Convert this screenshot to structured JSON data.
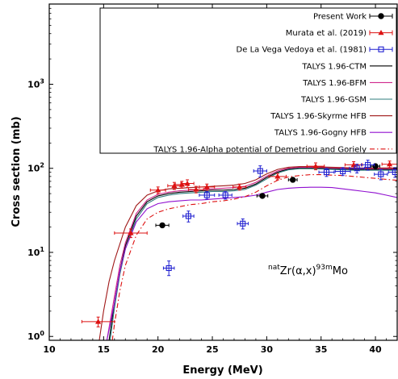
{
  "chart_data": {
    "type": "scatter",
    "xlabel": "Energy (MeV)",
    "ylabel": "Cross section (mb)",
    "xlim": [
      10,
      42
    ],
    "ylim": [
      0.9,
      9000
    ],
    "yscale": "log",
    "x_ticks": [
      10,
      15,
      20,
      25,
      30,
      35,
      40
    ],
    "y_ticks": [
      {
        "value": 1,
        "base": "10",
        "exp": "0"
      },
      {
        "value": 10,
        "base": "10",
        "exp": "1"
      },
      {
        "value": 100,
        "base": "10",
        "exp": "2"
      },
      {
        "value": 1000,
        "base": "10",
        "exp": "3"
      }
    ],
    "grid": false,
    "legend_placement": "top-right",
    "annotation": {
      "pre_sup": "nat",
      "main": "Zr(α,x)",
      "post_sup": "93m",
      "tail": "Mo"
    },
    "experimental": [
      {
        "name": "Present Work",
        "color": "#000000",
        "marker": "circle-filled",
        "points": [
          {
            "x": 20.4,
            "y": 21,
            "xerr": 0.6,
            "yerr_lo": 1.2,
            "yerr_hi": 1.2
          },
          {
            "x": 29.6,
            "y": 47,
            "xerr": 0.5,
            "yerr_lo": 2.5,
            "yerr_hi": 2.5
          },
          {
            "x": 32.4,
            "y": 73,
            "xerr": 0.4,
            "yerr_lo": 4,
            "yerr_hi": 4
          },
          {
            "x": 40.0,
            "y": 106,
            "xerr": 0.4,
            "yerr_lo": 5,
            "yerr_hi": 5
          }
        ]
      },
      {
        "name": "Murata et al. (2019)",
        "color": "#dd1111",
        "marker": "triangle-filled",
        "points": [
          {
            "x": 14.5,
            "y": 1.5,
            "xerr": 1.5,
            "yerr_lo": 0.2,
            "yerr_hi": 0.2
          },
          {
            "x": 17.5,
            "y": 17,
            "xerr": 1.5,
            "yerr_lo": 2,
            "yerr_hi": 2
          },
          {
            "x": 20.0,
            "y": 55,
            "xerr": 0.7,
            "yerr_lo": 5,
            "yerr_hi": 5
          },
          {
            "x": 21.5,
            "y": 62,
            "xerr": 0.6,
            "yerr_lo": 6,
            "yerr_hi": 6
          },
          {
            "x": 22.2,
            "y": 64,
            "xerr": 0.6,
            "yerr_lo": 6,
            "yerr_hi": 6
          },
          {
            "x": 22.7,
            "y": 66,
            "xerr": 0.6,
            "yerr_lo": 7,
            "yerr_hi": 7
          },
          {
            "x": 23.5,
            "y": 56,
            "xerr": 0.7,
            "yerr_lo": 5,
            "yerr_hi": 5
          },
          {
            "x": 24.5,
            "y": 60,
            "xerr": 0.7,
            "yerr_lo": 5,
            "yerr_hi": 5
          },
          {
            "x": 27.5,
            "y": 60,
            "xerr": 0.6,
            "yerr_lo": 5,
            "yerr_hi": 5
          },
          {
            "x": 31.0,
            "y": 80,
            "xerr": 0.8,
            "yerr_lo": 7,
            "yerr_hi": 7
          },
          {
            "x": 34.5,
            "y": 106,
            "xerr": 0.8,
            "yerr_lo": 10,
            "yerr_hi": 10
          },
          {
            "x": 38.0,
            "y": 110,
            "xerr": 0.8,
            "yerr_lo": 10,
            "yerr_hi": 10
          },
          {
            "x": 41.3,
            "y": 112,
            "xerr": 0.7,
            "yerr_lo": 10,
            "yerr_hi": 10
          }
        ]
      },
      {
        "name": "De La Vega Vedoya et al. (1981)",
        "color": "#1f1fd0",
        "marker": "square-open",
        "points": [
          {
            "x": 21.0,
            "y": 6.5,
            "xerr": 0.5,
            "yerr_lo": 1.2,
            "yerr_hi": 1.4
          },
          {
            "x": 22.8,
            "y": 27,
            "xerr": 0.5,
            "yerr_lo": 4,
            "yerr_hi": 4
          },
          {
            "x": 24.5,
            "y": 48,
            "xerr": 0.7,
            "yerr_lo": 5,
            "yerr_hi": 5
          },
          {
            "x": 26.2,
            "y": 48,
            "xerr": 0.6,
            "yerr_lo": 5,
            "yerr_hi": 5
          },
          {
            "x": 27.8,
            "y": 22,
            "xerr": 0.5,
            "yerr_lo": 3,
            "yerr_hi": 3
          },
          {
            "x": 29.4,
            "y": 93,
            "xerr": 0.6,
            "yerr_lo": 14,
            "yerr_hi": 14
          },
          {
            "x": 35.5,
            "y": 90,
            "xerr": 0.7,
            "yerr_lo": 10,
            "yerr_hi": 10
          },
          {
            "x": 37.0,
            "y": 92,
            "xerr": 0.7,
            "yerr_lo": 10,
            "yerr_hi": 10
          },
          {
            "x": 38.3,
            "y": 100,
            "xerr": 0.7,
            "yerr_lo": 12,
            "yerr_hi": 12
          },
          {
            "x": 39.3,
            "y": 110,
            "xerr": 0.6,
            "yerr_lo": 15,
            "yerr_hi": 15
          },
          {
            "x": 40.5,
            "y": 85,
            "xerr": 0.6,
            "yerr_lo": 12,
            "yerr_hi": 12
          },
          {
            "x": 41.8,
            "y": 90,
            "xerr": 0.6,
            "yerr_lo": 12,
            "yerr_hi": 12
          }
        ]
      }
    ],
    "curves": [
      {
        "name": "TALYS 1.96-CTM",
        "color": "#000000",
        "dash": "",
        "x": [
          15.5,
          16,
          16.5,
          17,
          18,
          19,
          20,
          21,
          22,
          23,
          24,
          25,
          26,
          27,
          28,
          29,
          30,
          31,
          32,
          33,
          34,
          35,
          36,
          37,
          38,
          39,
          40,
          41,
          42
        ],
        "y": [
          0.9,
          2.5,
          6,
          12,
          27,
          40,
          47,
          50,
          52,
          53,
          54,
          55,
          55,
          56,
          58,
          65,
          78,
          90,
          98,
          101,
          101,
          100,
          99,
          98,
          97,
          97,
          97,
          97,
          97
        ]
      },
      {
        "name": "TALYS 1.96-BFM",
        "color": "#d0288c",
        "dash": "",
        "x": [
          15.3,
          16,
          16.5,
          17,
          18,
          19,
          20,
          21,
          22,
          23,
          24,
          25,
          26,
          27,
          28,
          29,
          30,
          31,
          32,
          33,
          34,
          35,
          36,
          37,
          38,
          39,
          40,
          41,
          42
        ],
        "y": [
          0.9,
          3,
          7,
          13,
          29,
          42,
          49,
          52,
          54,
          55,
          56,
          57,
          58,
          59,
          61,
          68,
          81,
          93,
          100,
          103,
          103,
          102,
          101,
          100,
          99,
          99,
          99,
          99,
          99
        ]
      },
      {
        "name": "TALYS 1.96-GSM",
        "color": "#2e7d7d",
        "dash": "",
        "x": [
          15.6,
          16,
          16.5,
          17,
          18,
          19,
          20,
          21,
          22,
          23,
          24,
          25,
          26,
          27,
          28,
          29,
          30,
          31,
          32,
          33,
          34,
          35,
          36,
          37,
          38,
          39,
          40,
          41,
          42
        ],
        "y": [
          0.9,
          2.2,
          5.5,
          11,
          25,
          38,
          45,
          48,
          50,
          51,
          52,
          53,
          53,
          54,
          56,
          63,
          75,
          88,
          96,
          99,
          99,
          98,
          97,
          96,
          95,
          95,
          95,
          95,
          95
        ]
      },
      {
        "name": "TALYS 1.96-Skyrme HFB",
        "color": "#a01818",
        "dash": "",
        "x": [
          14.6,
          15,
          15.5,
          16,
          17,
          18,
          19,
          20,
          21,
          22,
          23,
          24,
          25,
          26,
          27,
          28,
          29,
          30,
          31,
          32,
          33,
          34,
          35,
          36,
          37,
          38,
          39,
          40,
          41,
          42
        ],
        "y": [
          0.9,
          2,
          4.5,
          8,
          20,
          36,
          48,
          54,
          57,
          58,
          59,
          60,
          61,
          62,
          63,
          66,
          73,
          86,
          97,
          103,
          105,
          105,
          104,
          103,
          102,
          101,
          101,
          101,
          101,
          101
        ]
      },
      {
        "name": "TALYS 1.96-Gogny HFB",
        "color": "#9010d0",
        "dash": "",
        "x": [
          15.3,
          16,
          16.5,
          17,
          18,
          19,
          20,
          21,
          22,
          23,
          24,
          25,
          26,
          27,
          28,
          29,
          30,
          31,
          32,
          33,
          34,
          35,
          36,
          37,
          38,
          39,
          40,
          41,
          42
        ],
        "y": [
          0.9,
          2.5,
          6,
          11,
          23,
          33,
          38,
          40,
          41,
          42,
          42,
          43,
          44,
          45,
          46,
          48,
          52,
          56,
          58,
          59,
          59.5,
          59.5,
          59,
          57,
          55,
          53,
          51,
          48,
          45
        ]
      },
      {
        "name": "TALYS 1.96-Alpha potential of Demetriou and Goriely",
        "color": "#dd1111",
        "dash": "6,3,1.5,3",
        "x": [
          15.8,
          16,
          16.5,
          17,
          18,
          19,
          20,
          21,
          22,
          23,
          24,
          25,
          26,
          27,
          28,
          29,
          30,
          31,
          32,
          33,
          34,
          35,
          36,
          37,
          38,
          39,
          40,
          41,
          42
        ],
        "y": [
          0.9,
          1.4,
          3.5,
          7,
          16,
          25,
          30,
          33,
          35,
          37,
          38,
          40,
          41,
          43,
          46,
          52,
          62,
          72,
          79,
          82,
          84,
          84,
          83,
          82,
          80,
          78,
          76,
          74,
          72
        ]
      }
    ]
  }
}
